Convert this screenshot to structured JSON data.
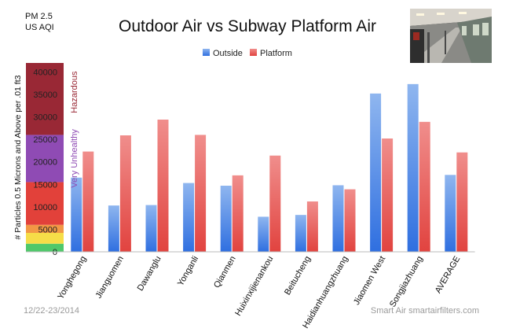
{
  "chart_data": {
    "type": "bar",
    "title": "Outdoor Air vs Subway Platform Air",
    "corner_label": [
      "PM 2.5",
      "US AQI"
    ],
    "ylabel": "# Particles 0.5 Microns and Above per .01 ft3",
    "ylim": [
      0,
      42000
    ],
    "yticks": [
      0,
      5000,
      10000,
      15000,
      20000,
      25000,
      30000,
      35000,
      40000
    ],
    "categories": [
      "Yonghegong",
      "Jianguomen",
      "Dawanglu",
      "Yonganli",
      "Qianmen",
      "Huixinxijienankou",
      "Beitucheng",
      "Haidianhuangzhuang",
      "Jiaomen West",
      "Songjiazhuang",
      "AVERAGE"
    ],
    "series": [
      {
        "name": "Outside",
        "color": "#8fb6ef",
        "values": [
          16500,
          10300,
          10400,
          15300,
          14700,
          7800,
          8200,
          14800,
          35200,
          37300,
          17100
        ]
      },
      {
        "name": "Platform",
        "color": "#f08e8c",
        "values": [
          22300,
          25900,
          29400,
          26000,
          17000,
          21400,
          11200,
          13900,
          25200,
          28900,
          22100
        ]
      }
    ],
    "aqi_bands": [
      {
        "from": 0,
        "to": 1800,
        "color": "#4fc86a"
      },
      {
        "from": 1800,
        "to": 4200,
        "color": "#f6dd48"
      },
      {
        "from": 4200,
        "to": 6000,
        "color": "#f29845"
      },
      {
        "from": 6000,
        "to": 15500,
        "color": "#e2413a"
      },
      {
        "from": 15500,
        "to": 26000,
        "color": "#8f4bb4"
      },
      {
        "from": 26000,
        "to": 42000,
        "color": "#992835"
      }
    ],
    "aqi_labels": [
      {
        "text": "Very Unhealthy",
        "color": "#8f4bb4",
        "mid": 20750
      },
      {
        "text": "Hazardous",
        "color": "#992835",
        "mid": 35500
      }
    ],
    "legend_position": "top-center",
    "grid": false
  },
  "footer": {
    "date": "12/22-23/2014",
    "credit": "Smart Air smartairfilters.com"
  }
}
